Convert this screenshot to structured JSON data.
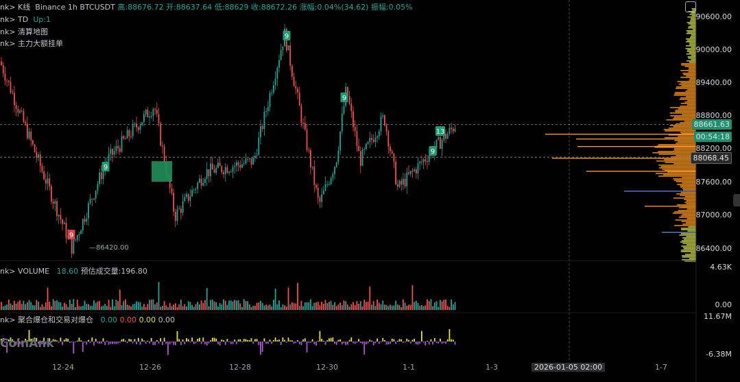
{
  "header": {
    "prefix": "nk> K线",
    "symbol": "Binance 1h BTCUSDT",
    "high": "高:88676.72",
    "open": "开:88637.64",
    "low": "低:88629",
    "close": "收:88672.26",
    "change": "涨幅:0.04%(34.62)",
    "amplitude": "振幅:0.05%"
  },
  "indicators": [
    {
      "label": "nk> TD",
      "extra": "Up:1"
    },
    {
      "label": "nk> 清算地图",
      "extra": ""
    },
    {
      "label": "nk> 主力大额挂单",
      "extra": ""
    }
  ],
  "volume_panel": {
    "label": "nk> VOLUME",
    "value": "18.60",
    "est_label": "预估成交量:196.80",
    "axis_top": "4.63K",
    "axis_bottom": "0.00"
  },
  "liq_panel": {
    "label": "nk> 聚合爆仓和交易对爆仓",
    "values": [
      "0.00",
      "0.00",
      "0.00",
      "0.00"
    ],
    "axis_top": "11.67M",
    "axis_bottom": "-6.38M"
  },
  "watermark": "CoinAnk",
  "price_axis": [
    "90600.00",
    "90000.00",
    "89400.00",
    "88800.00",
    "88200.00",
    "87600.00",
    "87000.00",
    "86400.00"
  ],
  "tags": {
    "last_price": "88661.63",
    "countdown": "00:54:18",
    "line_price": "88068.45"
  },
  "low_marker": "86420.00",
  "time_axis": [
    "12-24",
    "12-26",
    "12-28",
    "12-30",
    "1-1",
    "1-3",
    "1-7"
  ],
  "crosshair_time": "2026-01-05 02:00",
  "colors": {
    "up": "#26a69a",
    "down": "#ef5350",
    "bg": "#000000",
    "tag_green": "#1f8f72",
    "orange": "#f7931a"
  },
  "chart_data": {
    "type": "candlestick",
    "symbol": "BTCUSDT",
    "interval": "1h",
    "ylim": [
      86100,
      90800
    ],
    "y_ticks": [
      86400,
      87000,
      87600,
      88200,
      88800,
      89400,
      90000,
      90600
    ],
    "key_points": [
      {
        "x": "12-23",
        "price": 89800
      },
      {
        "x": "12-24",
        "price": 86420
      },
      {
        "x": "12-25",
        "price": 88000
      },
      {
        "x": "12-26",
        "price": 89000
      },
      {
        "x": "12-26",
        "price": 87000
      },
      {
        "x": "12-27",
        "price": 87800
      },
      {
        "x": "12-28",
        "price": 88000
      },
      {
        "x": "12-29",
        "price": 90300
      },
      {
        "x": "12-29",
        "price": 87200
      },
      {
        "x": "12-30",
        "price": 88000
      },
      {
        "x": "12-30",
        "price": 89300
      },
      {
        "x": "12-31",
        "price": 88000
      },
      {
        "x": "12-31",
        "price": 88800
      },
      {
        "x": "1-1",
        "price": 87500
      },
      {
        "x": "1-2",
        "price": 88661.63
      }
    ],
    "td_labels": [
      {
        "text": "9",
        "color": "red"
      },
      {
        "text": "9",
        "color": "green"
      },
      {
        "text": "9",
        "color": "green"
      },
      {
        "text": "9",
        "color": "green"
      },
      {
        "text": "9",
        "color": "green"
      },
      {
        "text": "13",
        "color": "green"
      }
    ],
    "horizontal_lines": [
      88661.63,
      88068.45
    ],
    "volume_axis": [
      "0.00",
      "4.63K"
    ],
    "liq_axis": [
      "-6.38M",
      "11.67M"
    ]
  }
}
